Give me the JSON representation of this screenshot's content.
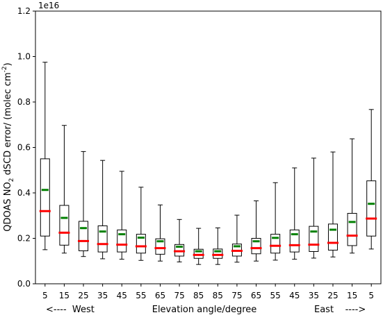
{
  "chart_data": {
    "type": "boxplot",
    "scale_label": "1e16",
    "ylabel_parts": {
      "pre": "QDOAS NO",
      "sub": "2",
      "mid": " dSCD error/ (molec cm",
      "sup": "-2",
      "post": ")"
    },
    "xlabel_left": "<----  West",
    "xlabel_center": "Elevation angle/degree",
    "xlabel_right": "East    ---->",
    "ylim": [
      0,
      1.2
    ],
    "yticks": [
      "0.0",
      "0.2",
      "0.4",
      "0.6",
      "0.8",
      "1.0",
      "1.2"
    ],
    "categories": [
      "5",
      "15",
      "25",
      "35",
      "45",
      "55",
      "65",
      "75",
      "85",
      "85",
      "75",
      "65",
      "55",
      "45",
      "35",
      "25",
      "15",
      "5"
    ],
    "median_color": "#ff0000",
    "mean_color": "#008000",
    "boxes": [
      {
        "whislo": 0.15,
        "q1": 0.21,
        "med": 0.32,
        "mean": 0.413,
        "q3": 0.55,
        "whishi": 0.975
      },
      {
        "whislo": 0.135,
        "q1": 0.17,
        "med": 0.225,
        "mean": 0.29,
        "q3": 0.345,
        "whishi": 0.697
      },
      {
        "whislo": 0.12,
        "q1": 0.145,
        "med": 0.188,
        "mean": 0.245,
        "q3": 0.275,
        "whishi": 0.582
      },
      {
        "whislo": 0.11,
        "q1": 0.14,
        "med": 0.175,
        "mean": 0.23,
        "q3": 0.255,
        "whishi": 0.543
      },
      {
        "whislo": 0.108,
        "q1": 0.14,
        "med": 0.172,
        "mean": 0.218,
        "q3": 0.237,
        "whishi": 0.495
      },
      {
        "whislo": 0.103,
        "q1": 0.135,
        "med": 0.165,
        "mean": 0.203,
        "q3": 0.218,
        "whishi": 0.425
      },
      {
        "whislo": 0.1,
        "q1": 0.13,
        "med": 0.157,
        "mean": 0.187,
        "q3": 0.198,
        "whishi": 0.347
      },
      {
        "whislo": 0.096,
        "q1": 0.122,
        "med": 0.143,
        "mean": 0.163,
        "q3": 0.173,
        "whishi": 0.283
      },
      {
        "whislo": 0.085,
        "q1": 0.112,
        "med": 0.127,
        "mean": 0.143,
        "q3": 0.152,
        "whishi": 0.244
      },
      {
        "whislo": 0.085,
        "q1": 0.112,
        "med": 0.127,
        "mean": 0.143,
        "q3": 0.153,
        "whishi": 0.246
      },
      {
        "whislo": 0.095,
        "q1": 0.122,
        "med": 0.145,
        "mean": 0.165,
        "q3": 0.175,
        "whishi": 0.302
      },
      {
        "whislo": 0.1,
        "q1": 0.132,
        "med": 0.157,
        "mean": 0.187,
        "q3": 0.2,
        "whishi": 0.365
      },
      {
        "whislo": 0.104,
        "q1": 0.135,
        "med": 0.167,
        "mean": 0.202,
        "q3": 0.218,
        "whishi": 0.445
      },
      {
        "whislo": 0.108,
        "q1": 0.14,
        "med": 0.17,
        "mean": 0.218,
        "q3": 0.237,
        "whishi": 0.51
      },
      {
        "whislo": 0.113,
        "q1": 0.142,
        "med": 0.172,
        "mean": 0.23,
        "q3": 0.253,
        "whishi": 0.553
      },
      {
        "whislo": 0.118,
        "q1": 0.148,
        "med": 0.18,
        "mean": 0.238,
        "q3": 0.263,
        "whishi": 0.58
      },
      {
        "whislo": 0.135,
        "q1": 0.168,
        "med": 0.212,
        "mean": 0.272,
        "q3": 0.31,
        "whishi": 0.638
      },
      {
        "whislo": 0.153,
        "q1": 0.21,
        "med": 0.287,
        "mean": 0.352,
        "q3": 0.453,
        "whishi": 0.767
      }
    ]
  }
}
